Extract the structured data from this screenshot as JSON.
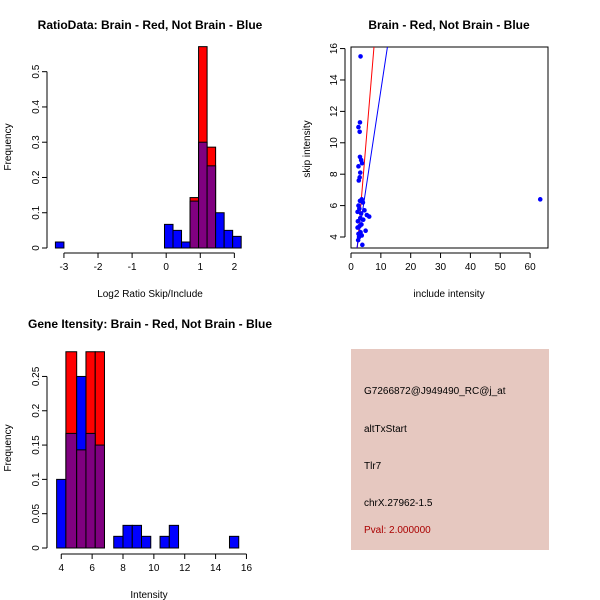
{
  "chart_data": [
    {
      "type": "histogram",
      "title": "RatioData: Brain - Red, Not Brain - Blue",
      "xlabel": "Log2 Ratio Skip/Include",
      "ylabel": "Frequency",
      "xlim": [
        -3.35,
        2.4
      ],
      "ylim": [
        0,
        0.57
      ],
      "xticks": [
        -3,
        -2,
        -1,
        0,
        1,
        2
      ],
      "yticks": [
        0,
        0.1,
        0.2,
        0.3,
        0.4,
        0.5
      ],
      "series": [
        {
          "name": "Brain",
          "color": "#ff0000",
          "bars": [
            {
              "x0": 0.7,
              "x1": 0.95,
              "value": 0.143
            },
            {
              "x0": 0.95,
              "x1": 1.2,
              "value": 0.571
            },
            {
              "x0": 1.2,
              "x1": 1.45,
              "value": 0.286
            }
          ]
        },
        {
          "name": "Not Brain",
          "color": "#0000ff",
          "bars": [
            {
              "x0": -3.25,
              "x1": -3.0,
              "value": 0.017
            },
            {
              "x0": -0.05,
              "x1": 0.2,
              "value": 0.067
            },
            {
              "x0": 0.2,
              "x1": 0.45,
              "value": 0.05
            },
            {
              "x0": 0.45,
              "x1": 0.7,
              "value": 0.017
            },
            {
              "x0": 0.7,
              "x1": 0.95,
              "value": 0.133
            },
            {
              "x0": 0.95,
              "x1": 1.2,
              "value": 0.3
            },
            {
              "x0": 1.2,
              "x1": 1.45,
              "value": 0.233
            },
            {
              "x0": 1.45,
              "x1": 1.7,
              "value": 0.1
            },
            {
              "x0": 1.7,
              "x1": 1.95,
              "value": 0.05
            },
            {
              "x0": 1.95,
              "x1": 2.2,
              "value": 0.033
            }
          ]
        }
      ],
      "overlap_color": "#800080"
    },
    {
      "type": "scatter",
      "title": "Brain - Red, Not Brain - Blue",
      "xlabel": "include intensity",
      "ylabel": "skip intensity",
      "xlim": [
        0,
        66
      ],
      "ylim": [
        3.3,
        16.1
      ],
      "xticks": [
        0,
        10,
        20,
        30,
        40,
        50,
        60
      ],
      "yticks": [
        4,
        6,
        8,
        10,
        12,
        14,
        16
      ],
      "point_color": "#0000ff",
      "points": [
        {
          "x": 3.2,
          "y": 15.5
        },
        {
          "x": 2.5,
          "y": 11.0
        },
        {
          "x": 2.9,
          "y": 10.7
        },
        {
          "x": 3.0,
          "y": 11.3
        },
        {
          "x": 3.0,
          "y": 9.1
        },
        {
          "x": 3.4,
          "y": 8.9
        },
        {
          "x": 2.5,
          "y": 8.5
        },
        {
          "x": 3.7,
          "y": 8.7
        },
        {
          "x": 3.1,
          "y": 8.1
        },
        {
          "x": 2.6,
          "y": 7.6
        },
        {
          "x": 2.9,
          "y": 7.8
        },
        {
          "x": 3.6,
          "y": 6.4
        },
        {
          "x": 2.5,
          "y": 6.0
        },
        {
          "x": 3.0,
          "y": 6.3
        },
        {
          "x": 4.0,
          "y": 6.2
        },
        {
          "x": 2.2,
          "y": 5.6
        },
        {
          "x": 2.8,
          "y": 5.8
        },
        {
          "x": 3.4,
          "y": 5.5
        },
        {
          "x": 4.5,
          "y": 5.7
        },
        {
          "x": 5.3,
          "y": 5.4
        },
        {
          "x": 6.1,
          "y": 5.3
        },
        {
          "x": 2.3,
          "y": 5.0
        },
        {
          "x": 3.1,
          "y": 5.2
        },
        {
          "x": 4.1,
          "y": 5.1
        },
        {
          "x": 2.2,
          "y": 4.6
        },
        {
          "x": 2.9,
          "y": 4.7
        },
        {
          "x": 3.5,
          "y": 4.8
        },
        {
          "x": 4.9,
          "y": 4.4
        },
        {
          "x": 2.5,
          "y": 4.2
        },
        {
          "x": 3.2,
          "y": 4.3
        },
        {
          "x": 2.7,
          "y": 4.0
        },
        {
          "x": 3.6,
          "y": 4.1
        },
        {
          "x": 2.4,
          "y": 3.8
        },
        {
          "x": 3.8,
          "y": 3.5
        },
        {
          "x": 63.4,
          "y": 6.4
        }
      ],
      "lines": [
        {
          "color": "#ff0000",
          "x0": 2.1,
          "y0": 3.3,
          "x1": 7.7,
          "y1": 16.1
        },
        {
          "color": "#0000ff",
          "x0": 2.0,
          "y0": 3.3,
          "x1": 12.2,
          "y1": 16.1
        }
      ]
    },
    {
      "type": "histogram",
      "title": "Gene Itensity: Brain - Red, Not Brain - Blue",
      "xlabel": "Intensity",
      "ylabel": "Frequency",
      "xlim": [
        3.4,
        16.1
      ],
      "ylim": [
        0,
        0.29
      ],
      "xticks": [
        4,
        6,
        8,
        10,
        12,
        14,
        16
      ],
      "yticks": [
        0,
        0.05,
        0.1,
        0.15,
        0.2,
        0.25
      ],
      "series": [
        {
          "name": "Brain",
          "color": "#ff0000",
          "bars": [
            {
              "x0": 4.3,
              "x1": 5.0,
              "value": 0.286
            },
            {
              "x0": 5.0,
              "x1": 5.6,
              "value": 0.143
            },
            {
              "x0": 5.6,
              "x1": 6.2,
              "value": 0.286
            },
            {
              "x0": 6.2,
              "x1": 6.8,
              "value": 0.286
            }
          ]
        },
        {
          "name": "Not Brain",
          "color": "#0000ff",
          "bars": [
            {
              "x0": 3.7,
              "x1": 4.3,
              "value": 0.1
            },
            {
              "x0": 4.3,
              "x1": 5.0,
              "value": 0.167
            },
            {
              "x0": 5.0,
              "x1": 5.6,
              "value": 0.25
            },
            {
              "x0": 5.6,
              "x1": 6.2,
              "value": 0.167
            },
            {
              "x0": 6.2,
              "x1": 6.8,
              "value": 0.15
            },
            {
              "x0": 7.4,
              "x1": 8.0,
              "value": 0.017
            },
            {
              "x0": 8.0,
              "x1": 8.6,
              "value": 0.033
            },
            {
              "x0": 8.6,
              "x1": 9.2,
              "value": 0.033
            },
            {
              "x0": 9.2,
              "x1": 9.8,
              "value": 0.017
            },
            {
              "x0": 10.4,
              "x1": 11.0,
              "value": 0.017
            },
            {
              "x0": 11.0,
              "x1": 11.6,
              "value": 0.033
            },
            {
              "x0": 14.9,
              "x1": 15.5,
              "value": 0.017
            }
          ]
        }
      ],
      "overlap_color": "#800080"
    }
  ],
  "info_panel": {
    "probe": "G7266872@J949490_RC@j_at",
    "event": "altTxStart",
    "gene": "Tlr7",
    "location": "chrX.27962-1.5",
    "pval": "Pval: 2.000000"
  }
}
